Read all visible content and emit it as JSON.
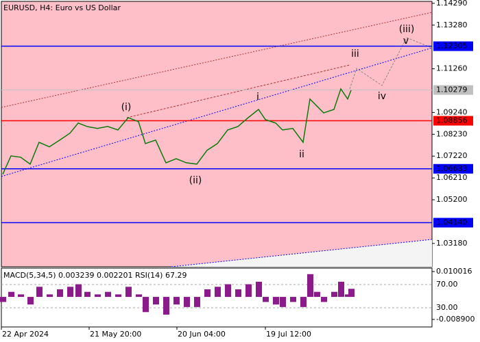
{
  "chart_data": [
    {
      "type": "line",
      "title": "EURUSD, H4:  Euro vs US Dollar",
      "x": [
        2,
        14,
        28,
        42,
        55,
        70,
        85,
        100,
        112,
        125,
        140,
        155,
        170,
        185,
        200,
        210,
        225,
        240,
        255,
        270,
        285,
        300,
        315,
        330,
        345,
        360,
        375,
        385,
        400,
        410,
        425,
        440,
        450,
        460,
        470,
        485,
        495,
        505,
        510
      ],
      "values": [
        1.0638,
        1.0723,
        1.0717,
        1.0685,
        1.0786,
        1.0765,
        1.0796,
        1.0828,
        1.0875,
        1.0859,
        1.085,
        1.0859,
        1.0843,
        1.09,
        1.0881,
        1.078,
        1.0796,
        1.0691,
        1.071,
        1.0691,
        1.0685,
        1.0749,
        1.078,
        1.0843,
        1.0859,
        1.09,
        1.0938,
        1.0891,
        1.0875,
        1.0843,
        1.085,
        1.0786,
        1.0986,
        1.0954,
        1.0922,
        1.0938,
        1.1033,
        1.0986,
        1.1027
      ],
      "color": "#0b7a0b",
      "xlim": [
        0,
        628
      ],
      "xticks": [
        {
          "value": 0,
          "label": "22 Apr 2024"
        },
        {
          "value": 128,
          "label": "21 May 20:00"
        },
        {
          "value": 256,
          "label": "20 Jun 04:00"
        },
        {
          "value": 385,
          "label": "19 Jul 12:00"
        }
      ],
      "ylim": [
        1.021,
        1.1438
      ],
      "yticks": [
        {
          "value": 1.1429,
          "label": "1.14290"
        },
        {
          "value": 1.1328,
          "label": "1.13280"
        },
        {
          "value": 1.1126,
          "label": "1.11260"
        },
        {
          "value": 1.0924,
          "label": "1.09240"
        },
        {
          "value": 1.0823,
          "label": "1.08230"
        },
        {
          "value": 1.0722,
          "label": "1.07220"
        },
        {
          "value": 1.0621,
          "label": "1.06210"
        },
        {
          "value": 1.052,
          "label": "1.05200"
        },
        {
          "value": 1.0318,
          "label": "1.03180"
        }
      ],
      "levels": [
        {
          "value": 1.12305,
          "label": "1.12305",
          "color": "#0000ff"
        },
        {
          "value": 1.10279,
          "label": "1.10279",
          "color": "#c0c0c0"
        },
        {
          "value": 1.08856,
          "label": "1.08856",
          "color": "#ff0000"
        },
        {
          "value": 1.06633,
          "label": "1.06633",
          "color": "#0000ff"
        },
        {
          "value": 1.0414,
          "label": "1.04140",
          "color": "#0000ff"
        }
      ],
      "annotations": [
        {
          "text": "(i)",
          "color": "#d42020"
        },
        {
          "text": "(ii)",
          "color": "#d42020"
        },
        {
          "text": "(iii)",
          "color": "#d42020"
        },
        {
          "text": "i",
          "color": "#8c8c8c"
        },
        {
          "text": "ii",
          "color": "#8c8c8c"
        },
        {
          "text": "iii",
          "color": "#8c8c8c"
        },
        {
          "text": "iv",
          "color": "#8c8c8c"
        },
        {
          "text": "v",
          "color": "#8c8c8c"
        }
      ]
    },
    {
      "type": "bar",
      "title": "MACD(5,34,5) 0.003239 0.002201 RSI(14) 67.29",
      "values": [
        -0.002,
        0.002,
        0.001,
        -0.003,
        0.004,
        0.001,
        0.003,
        0.004,
        0.005,
        0.002,
        0.001,
        0.002,
        0.001,
        0.004,
        0.001,
        -0.006,
        -0.003,
        -0.007,
        -0.003,
        -0.004,
        -0.004,
        0.003,
        0.004,
        0.005,
        0.003,
        0.005,
        0.006,
        -0.002,
        -0.003,
        -0.004,
        -0.002,
        -0.004,
        0.009,
        0.002,
        -0.002,
        0.002,
        0.006,
        0.001,
        0.0032
      ],
      "color": "#8b1a8b",
      "ylim": [
        -0.01187,
        0.01137
      ],
      "yticks": [
        {
          "value": 0.010016,
          "label": "0.010016"
        },
        {
          "value": -0.0089,
          "label": "-0.008900"
        }
      ],
      "y2lim": [
        -2.9,
        98.2
      ],
      "y2ticks": [
        {
          "value": 70,
          "label": "70.00"
        },
        {
          "value": 30,
          "label": "30.00"
        }
      ]
    }
  ]
}
